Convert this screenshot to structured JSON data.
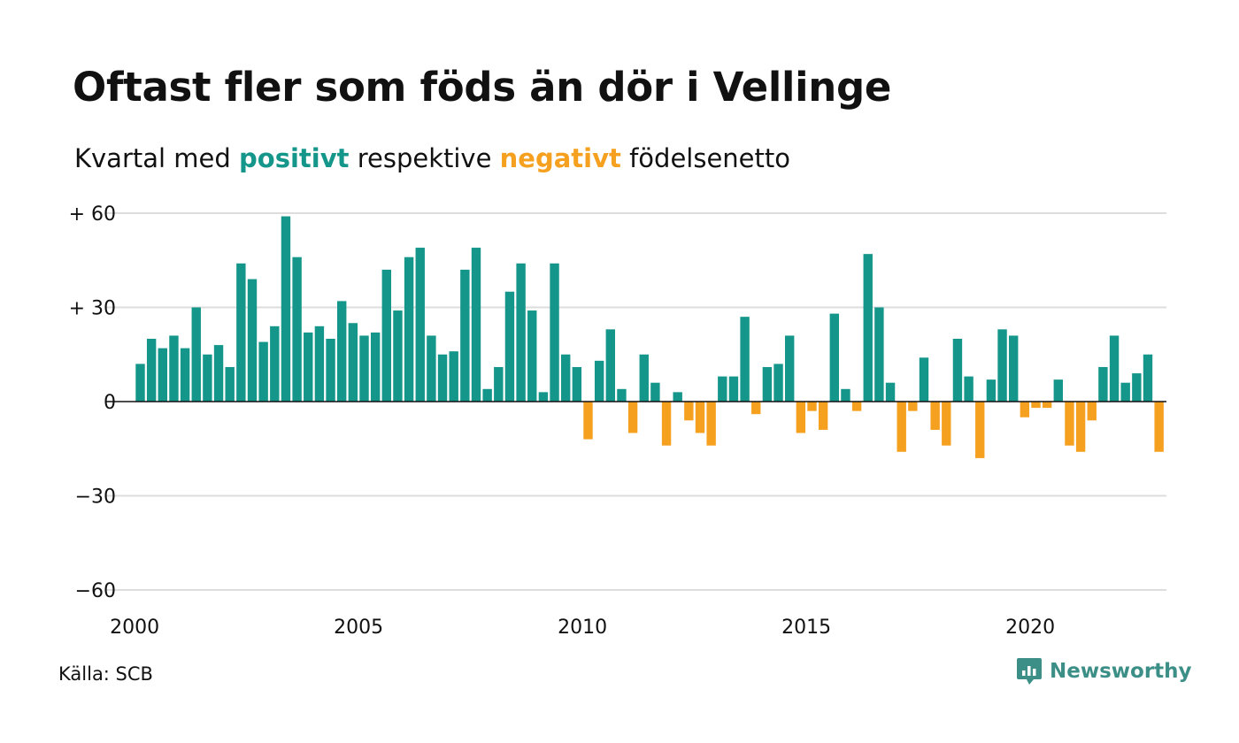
{
  "header": {
    "title": "Oftast fler som föds än dör i Vellinge",
    "subtitle_prefix": "Kvartal med",
    "subtitle_positive": "positivt",
    "subtitle_middle": "respektive",
    "subtitle_negative": "negativt",
    "subtitle_suffix": "födelsenetto"
  },
  "footer": {
    "source": "Källa: SCB",
    "brand": "Newsworthy",
    "brand_icon": "newsworthy-logo-icon"
  },
  "colors": {
    "positive": "#15968a",
    "negative": "#f5a11f",
    "grid": "#dddddd",
    "zero_line": "#111111",
    "brand": "#3c8f86"
  },
  "chart_data": {
    "type": "bar",
    "title": "Oftast fler som föds än dör i Vellinge",
    "subtitle": "Kvartal med positivt respektive negativt födelsenetto",
    "xlabel": "",
    "ylabel": "",
    "ylim": [
      -60,
      60
    ],
    "yticks": [
      {
        "value": 60,
        "label": "+ 60"
      },
      {
        "value": 30,
        "label": "+ 30"
      },
      {
        "value": 0,
        "label": "0"
      },
      {
        "value": -30,
        "label": "−30"
      },
      {
        "value": -60,
        "label": "−60"
      }
    ],
    "xticks": [
      {
        "year": 2000,
        "label": "2000"
      },
      {
        "year": 2005,
        "label": "2005"
      },
      {
        "year": 2010,
        "label": "2010"
      },
      {
        "year": 2015,
        "label": "2015"
      },
      {
        "year": 2020,
        "label": "2020"
      }
    ],
    "grid": true,
    "start": "2000 Q1",
    "period": "quarter",
    "values": [
      12,
      20,
      17,
      21,
      17,
      30,
      15,
      18,
      11,
      44,
      39,
      19,
      24,
      59,
      46,
      22,
      24,
      20,
      32,
      25,
      21,
      22,
      42,
      29,
      46,
      49,
      21,
      15,
      16,
      42,
      49,
      4,
      11,
      35,
      44,
      29,
      3,
      44,
      15,
      11,
      -12,
      13,
      23,
      4,
      -10,
      15,
      6,
      -14,
      3,
      -6,
      -10,
      -14,
      8,
      8,
      27,
      -4,
      11,
      12,
      21,
      -10,
      -3,
      -9,
      28,
      4,
      -3,
      47,
      30,
      6,
      -16,
      -3,
      14,
      -9,
      -14,
      20,
      8,
      -18,
      7,
      23,
      21,
      -5,
      -2,
      -2,
      7,
      -14,
      -16,
      -6,
      11,
      21,
      6,
      9,
      15,
      -16
    ]
  }
}
